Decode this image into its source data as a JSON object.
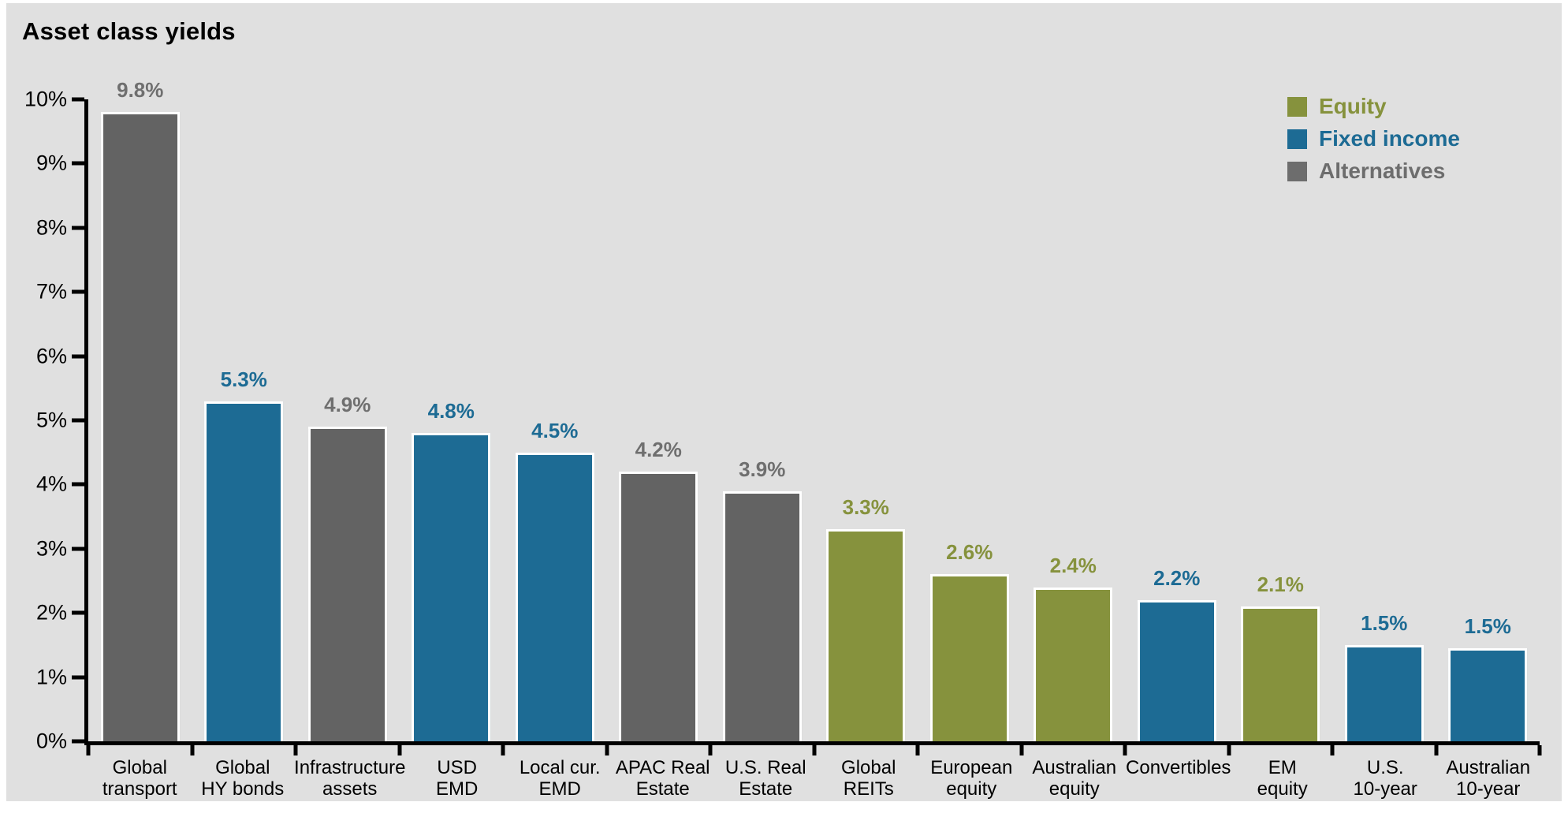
{
  "title": "Asset class yields",
  "legend": {
    "position": "top-right",
    "items": [
      {
        "label": "Equity",
        "group": "equity",
        "color": "#86923d"
      },
      {
        "label": "Fixed income",
        "group": "fixed_income",
        "color": "#1d6b94"
      },
      {
        "label": "Alternatives",
        "group": "alternatives",
        "color": "#6d6d6d"
      }
    ]
  },
  "colors": {
    "equity": "#86923d",
    "fixed_income": "#1d6b94",
    "alternatives": "#636363",
    "value_label_gray": "#6f6f6f",
    "background": "#e0e0e0",
    "axis": "#000000"
  },
  "y_axis": {
    "min": 0,
    "max": 10,
    "ticks": [
      "10%",
      "9%",
      "8%",
      "7%",
      "6%",
      "5%",
      "4%",
      "3%",
      "2%",
      "1%",
      "0%"
    ]
  },
  "chart_data": {
    "type": "bar",
    "title": "Asset class yields",
    "xlabel": "",
    "ylabel": "",
    "ylim": [
      0,
      10
    ],
    "grid": false,
    "legend_position": "top-right",
    "categories": [
      "Global transport",
      "Global HY bonds",
      "Infrastructure assets",
      "USD EMD",
      "Local cur. EMD",
      "APAC Real Estate",
      "U.S. Real Estate",
      "Global REITs",
      "European equity",
      "Australian equity",
      "Convertibles",
      "EM equity",
      "U.S. 10-year",
      "Australian 10-year"
    ],
    "category_lines": [
      [
        "Global",
        "transport"
      ],
      [
        "Global",
        "HY bonds"
      ],
      [
        "Infrastructure",
        "assets"
      ],
      [
        "USD",
        "EMD"
      ],
      [
        "Local cur.",
        "EMD"
      ],
      [
        "APAC Real",
        "Estate"
      ],
      [
        "U.S. Real",
        "Estate"
      ],
      [
        "Global",
        "REITs"
      ],
      [
        "European",
        "equity"
      ],
      [
        "Australian",
        "equity"
      ],
      [
        "Convertibles"
      ],
      [
        "EM",
        "equity"
      ],
      [
        "U.S.",
        "10-year"
      ],
      [
        "Australian",
        "10-year"
      ]
    ],
    "values": [
      9.8,
      5.3,
      4.9,
      4.8,
      4.5,
      4.2,
      3.9,
      3.3,
      2.6,
      2.4,
      2.2,
      2.1,
      1.5,
      1.45
    ],
    "value_labels": [
      "9.8%",
      "5.3%",
      "4.9%",
      "4.8%",
      "4.5%",
      "4.2%",
      "3.9%",
      "3.3%",
      "2.6%",
      "2.4%",
      "2.2%",
      "2.1%",
      "1.5%",
      "1.5%"
    ],
    "series_group": [
      "alternatives",
      "fixed_income",
      "alternatives",
      "fixed_income",
      "fixed_income",
      "alternatives",
      "alternatives",
      "equity",
      "equity",
      "equity",
      "fixed_income",
      "equity",
      "fixed_income",
      "fixed_income"
    ]
  }
}
